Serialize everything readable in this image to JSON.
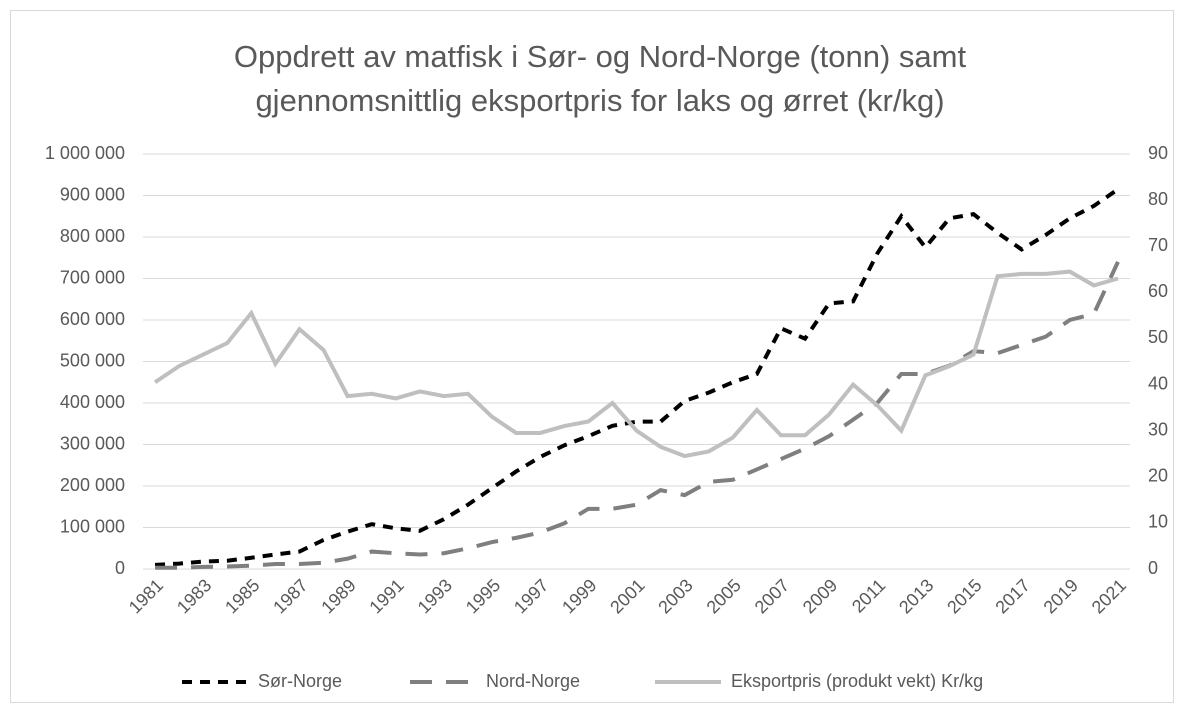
{
  "chart_data": {
    "type": "line",
    "title": [
      "Oppdrett av matfisk i Sør- og Nord-Norge (tonn) samt",
      "gjennomsnittlig eksportpris for laks og ørret (kr/kg)"
    ],
    "categories": [
      "1981",
      null,
      "1983",
      null,
      "1985",
      null,
      "1987",
      null,
      "1989",
      null,
      "1991",
      null,
      "1993",
      null,
      "1995",
      null,
      "1997",
      null,
      "1999",
      null,
      "2001",
      null,
      "2003",
      null,
      "2005",
      null,
      "2007",
      null,
      "2009",
      null,
      "2011",
      null,
      "2013",
      null,
      "2015",
      null,
      "2017",
      null,
      "2019",
      null,
      "2021"
    ],
    "series": [
      {
        "name": "Sør-Norge",
        "color": "#000000",
        "line_style": "dashed",
        "axis": "y",
        "values": [
          10000,
          13000,
          18000,
          20000,
          27000,
          35000,
          42000,
          70000,
          90000,
          108000,
          98000,
          92000,
          120000,
          155000,
          195000,
          235000,
          270000,
          298000,
          320000,
          345000,
          355000,
          355000,
          405000,
          425000,
          450000,
          470000,
          580000,
          555000,
          640000,
          645000,
          760000,
          850000,
          775000,
          845000,
          855000,
          810000,
          770000,
          805000,
          845000,
          875000,
          915000
        ]
      },
      {
        "name": "Nord-Norge",
        "color": "#7f7f7f",
        "line_style": "long-dashed",
        "axis": "y",
        "values": [
          3000,
          3000,
          5000,
          6000,
          8000,
          12000,
          12000,
          15000,
          25000,
          42000,
          38000,
          35000,
          38000,
          50000,
          65000,
          75000,
          88000,
          110000,
          145000,
          145000,
          155000,
          190000,
          178000,
          210000,
          215000,
          240000,
          265000,
          290000,
          320000,
          360000,
          400000,
          470000,
          470000,
          490000,
          525000,
          520000,
          540000,
          560000,
          600000,
          615000,
          740000
        ]
      },
      {
        "name": "Eksportpris (produkt vekt) Kr/kg",
        "color": "#bfbfbf",
        "line_style": "solid",
        "axis": "y2",
        "values": [
          40.5,
          44,
          46.5,
          49,
          55.5,
          44.5,
          52,
          47.5,
          37.5,
          38,
          37,
          38.5,
          37.5,
          38,
          33,
          29.5,
          29.5,
          31,
          32,
          36,
          30,
          26.5,
          24.5,
          25.5,
          28.5,
          34.5,
          29,
          29,
          33.5,
          40,
          35.5,
          30,
          42,
          44,
          46.5,
          63.5,
          64,
          64,
          64.5,
          61.5,
          63
        ]
      }
    ],
    "ylim": [
      0,
      1000000
    ],
    "yticks": [
      0,
      {
        "value": 100000,
        "label": "100 000"
      },
      {
        "value": 200000,
        "label": "200 000"
      },
      {
        "value": 300000,
        "label": "300 000"
      },
      {
        "value": 400000,
        "label": "400 000"
      },
      {
        "value": 500000,
        "label": "500 000"
      },
      {
        "value": 600000,
        "label": "600 000"
      },
      {
        "value": 700000,
        "label": "700 000"
      },
      {
        "value": 800000,
        "label": "800 000"
      },
      {
        "value": 900000,
        "label": "900 000"
      },
      {
        "value": 1000000,
        "label": "1 000 000"
      }
    ],
    "y2lim": [
      0,
      90
    ],
    "y2ticks": [
      0,
      10,
      20,
      30,
      40,
      50,
      60,
      70,
      80,
      90
    ],
    "grid": true,
    "legend": "bottom"
  }
}
